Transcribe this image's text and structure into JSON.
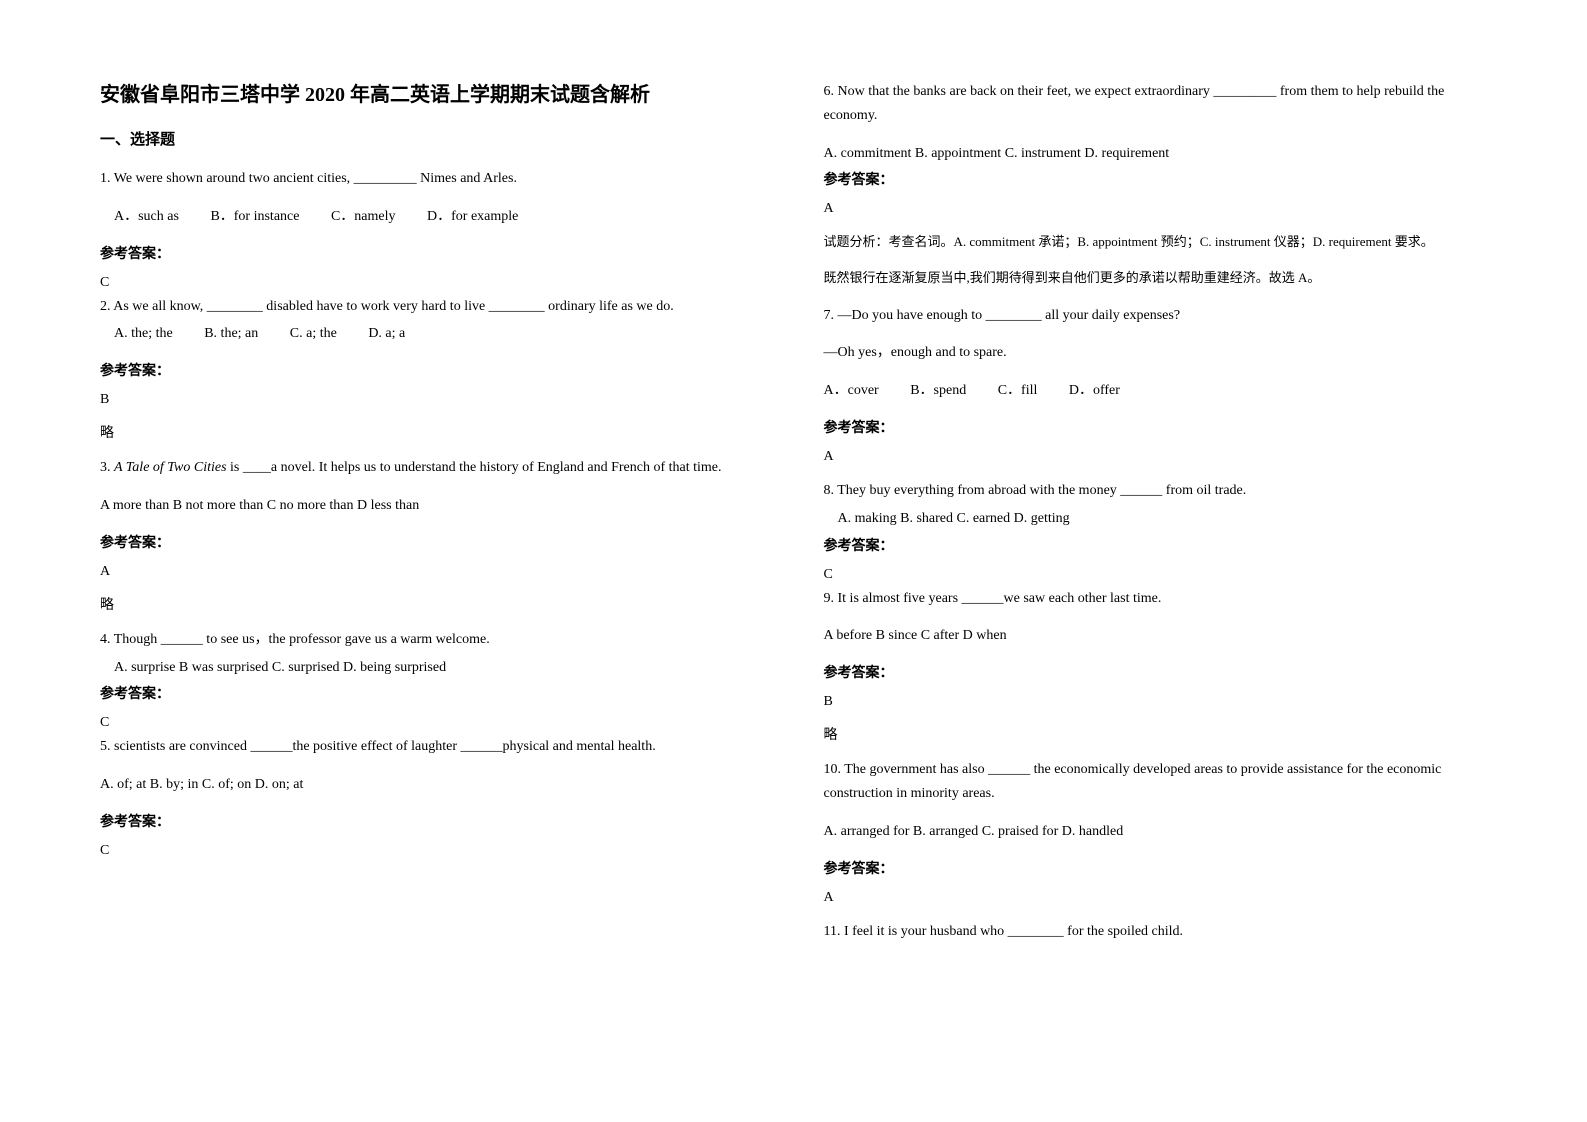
{
  "doc": {
    "title": "安徽省阜阳市三塔中学 2020 年高二英语上学期期末试题含解析",
    "section1": "一、选择题",
    "q1": {
      "text": "1. We were shown around two ancient cities, _________ Nimes and Arles.",
      "optA": "A．such as",
      "optB": "B．for instance",
      "optC": "C．namely",
      "optD": "D．for example",
      "ansLabel": "参考答案：",
      "ans": "C"
    },
    "q2": {
      "text": "2. As we all know, ________ disabled have to work very hard to live ________ ordinary life as we do.",
      "optA": "A. the; the",
      "optB": "B. the; an",
      "optC": "C. a; the",
      "optD": "D. a; a",
      "ansLabel": "参考答案：",
      "ans": "B",
      "note": "略"
    },
    "q3": {
      "prefix": "3. ",
      "italic": "A Tale of Two Cities",
      "suffix": " is ____a novel. It helps us to understand the history of England and French of that time.",
      "options": "A more than  B not more than  C no more than  D less than",
      "ansLabel": "参考答案：",
      "ans": "A",
      "note": "略"
    },
    "q4": {
      "text": "4. Though ______ to see us，the professor gave us a warm welcome.",
      "options": "A. surprise       B was surprised   C. surprised    D. being surprised",
      "ansLabel": "参考答案：",
      "ans": "C"
    },
    "q5": {
      "text": "5. scientists are convinced ______the positive effect of laughter ______physical and mental health.",
      "options": "A. of; at       B. by; in      C. of; on      D. on; at",
      "ansLabel": "参考答案：",
      "ans": "C"
    },
    "q6": {
      "text": "6. Now that the banks are back on their feet, we expect extraordinary _________ from them to help rebuild the economy.",
      "options": "A. commitment B. appointment     C. instrument        D. requirement",
      "ansLabel": "参考答案：",
      "ans": "A",
      "explain1": "试题分析：考查名词。A. commitment 承诺；B. appointment 预约；C. instrument 仪器；D. requirement 要求。",
      "explain2": "既然银行在逐渐复原当中,我们期待得到来自他们更多的承诺以帮助重建经济。故选 A。"
    },
    "q7": {
      "text": "7. —Do you have enough to ________ all your daily expenses?",
      "text2": "—Oh yes，enough and to spare.",
      "optA": "A．cover",
      "optB": "B．spend",
      "optC": "C．fill",
      "optD": "D．offer",
      "ansLabel": "参考答案：",
      "ans": "A"
    },
    "q8": {
      "text": "8. They buy everything from abroad with the money ______ from oil trade.",
      "options": "A. making   B. shared   C. earned   D. getting",
      "ansLabel": "参考答案：",
      "ans": "C"
    },
    "q9": {
      "text": "9.   It is almost five years ______we saw each other last time.",
      "options": "A  before    B  since    C  after    D  when",
      "ansLabel": "参考答案：",
      "ans": "B",
      "note": " 略"
    },
    "q10": {
      "text": "10. The government has also ______ the economically developed areas to provide assistance for the economic construction in minority areas.",
      "options": "A. arranged for   B. arranged   C. praised for   D. handled",
      "ansLabel": "参考答案：",
      "ans": "A"
    },
    "q11": {
      "text": "11. I feel it is your husband who ________ for the spoiled child."
    }
  }
}
